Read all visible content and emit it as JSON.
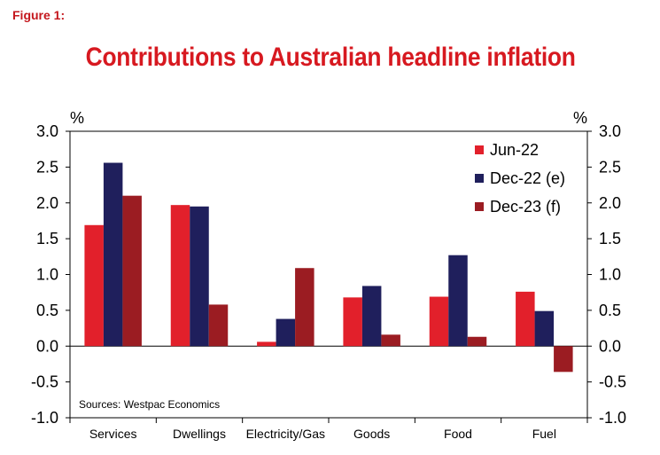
{
  "figure_label": "Figure 1:",
  "chart_data": {
    "type": "bar",
    "title": "Contributions to Australian headline inflation",
    "categories": [
      "Services",
      "Dwellings",
      "Electricity/Gas",
      "Goods",
      "Food",
      "Fuel"
    ],
    "series": [
      {
        "name": "Jun-22",
        "color": "#e2202b",
        "values": [
          1.69,
          1.97,
          0.06,
          0.68,
          0.69,
          0.76
        ]
      },
      {
        "name": "Dec-22 (e)",
        "color": "#1f1f5c",
        "values": [
          2.56,
          1.95,
          0.38,
          0.84,
          1.27,
          0.49
        ]
      },
      {
        "name": "Dec-23 (f)",
        "color": "#9b1c22",
        "values": [
          2.1,
          0.58,
          1.09,
          0.16,
          0.13,
          -0.36
        ]
      }
    ],
    "ylabel_left": "%",
    "ylabel_right": "%",
    "ylim": [
      -1.0,
      3.0
    ],
    "yticks": [
      "3.0",
      "2.5",
      "2.0",
      "1.5",
      "1.0",
      "0.5",
      "0.0",
      "-0.5",
      "-1.0"
    ],
    "ytick_values": [
      3.0,
      2.5,
      2.0,
      1.5,
      1.0,
      0.5,
      0.0,
      -0.5,
      -1.0
    ],
    "legend_position": "top-right",
    "source_note": "Sources: Westpac Economics"
  }
}
